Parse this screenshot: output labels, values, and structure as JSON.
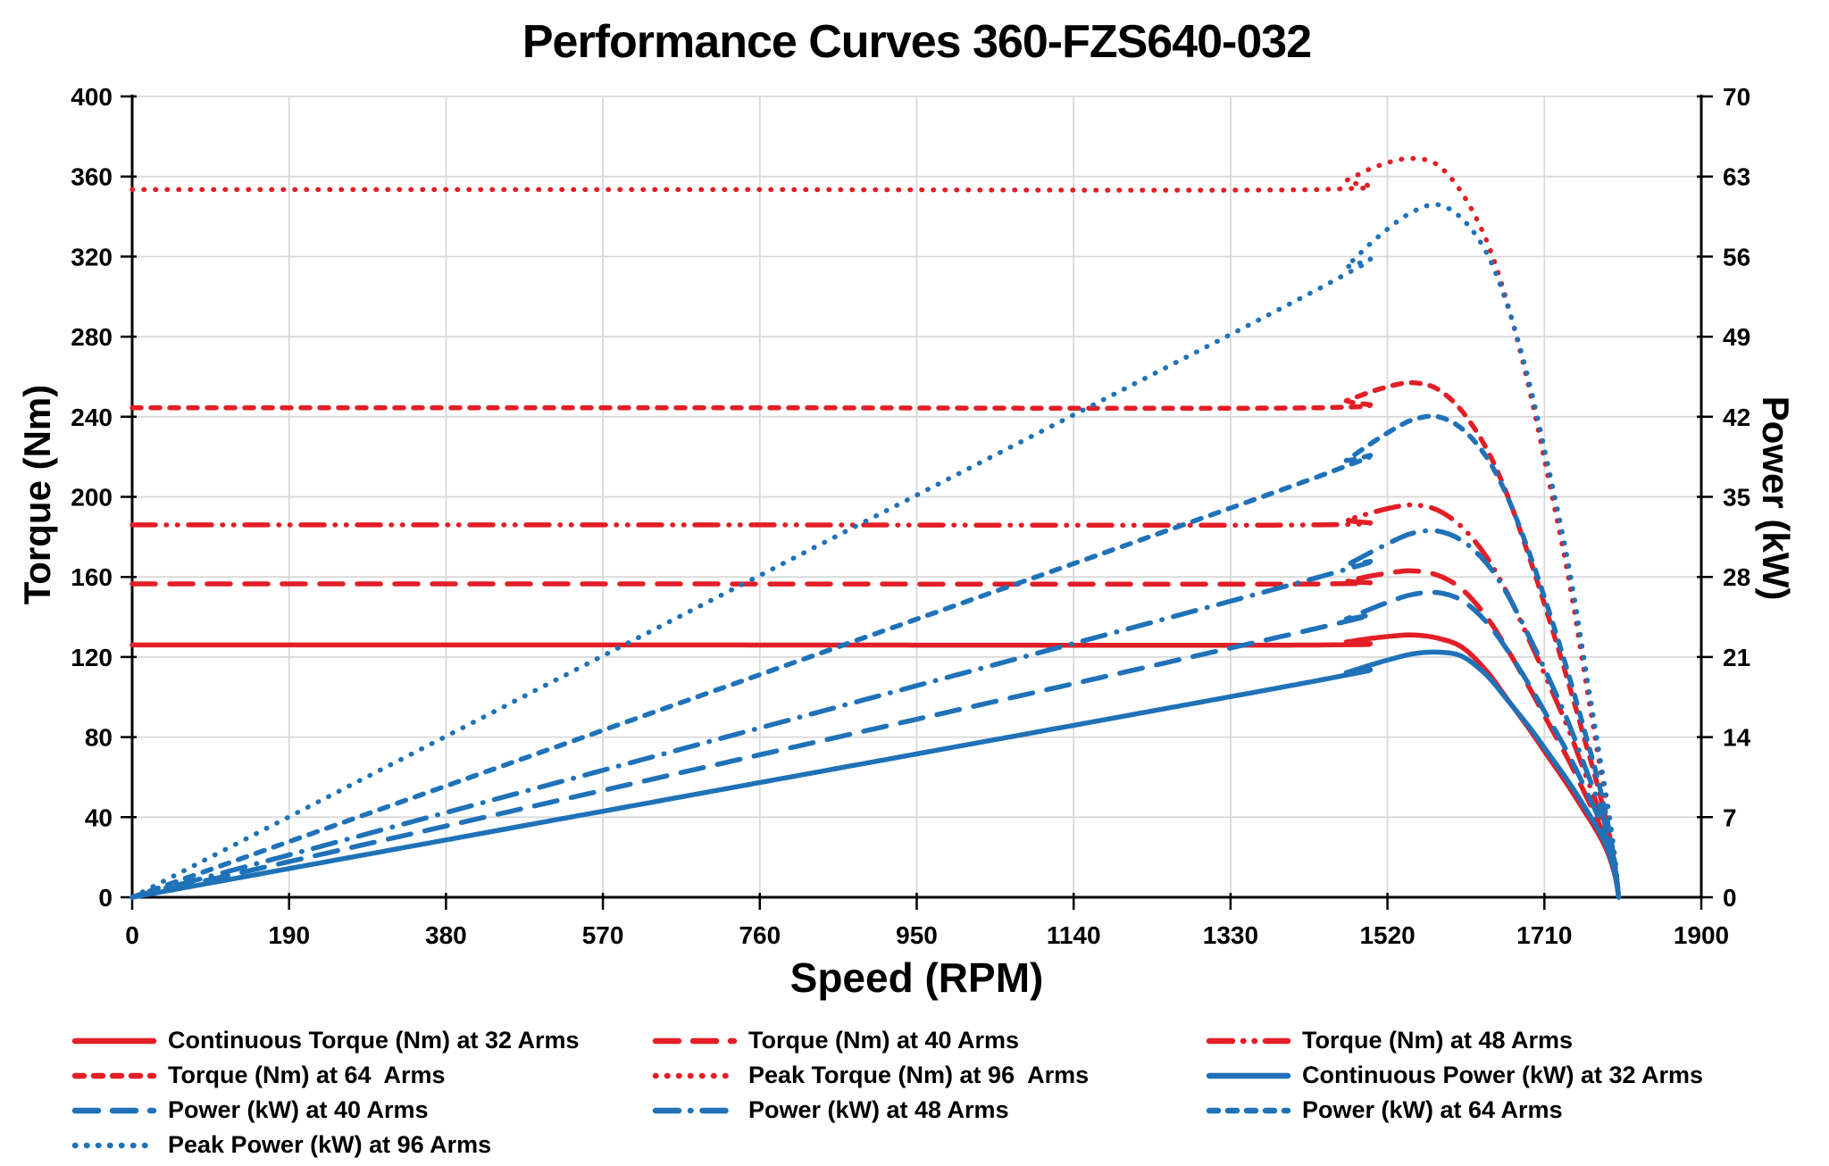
{
  "chart_data": {
    "type": "line",
    "title": "Performance Curves 360-FZS640-032",
    "x_axis": {
      "label": "Speed (RPM)",
      "min": 0,
      "max": 1900,
      "tick_step": 190,
      "ticks": [
        0,
        190,
        380,
        570,
        760,
        950,
        1140,
        1330,
        1520,
        1710,
        1900
      ]
    },
    "y_axis_left": {
      "label": "Torque (Nm)",
      "min": 0,
      "max": 400,
      "tick_step": 40,
      "ticks": [
        0,
        40,
        80,
        120,
        160,
        200,
        240,
        280,
        320,
        360,
        400
      ]
    },
    "y_axis_right": {
      "label": "Power (kW)",
      "min": 0,
      "max": 70,
      "tick_step": 7,
      "ticks": [
        0,
        7,
        14,
        21,
        28,
        35,
        42,
        49,
        56,
        63,
        70
      ]
    },
    "grid": true,
    "legend_position": "bottom",
    "colors": {
      "torque": "#e21e26",
      "power": "#1f72b8",
      "grid": "#d9d9d9",
      "axis": "#000000"
    },
    "power_from_torque_formula": "P_kW = T_Nm * RPM * PI / 30000",
    "series": [
      {
        "id": "torque-32",
        "label": "Continuous Torque (Nm) at 32 Arms",
        "axis": "left",
        "color_role": "torque",
        "dash": "solid",
        "flat_value_nm": 126,
        "peak_value_nm": 131,
        "points_rpm_nm": [
          [
            0,
            126
          ],
          [
            700,
            126
          ],
          [
            1440,
            126
          ],
          [
            1470,
            127.5
          ],
          [
            1500,
            129.3
          ],
          [
            1530,
            130.6
          ],
          [
            1552,
            131
          ],
          [
            1580,
            129.5
          ],
          [
            1610,
            125
          ],
          [
            1640,
            113
          ],
          [
            1665,
            99
          ],
          [
            1690,
            85
          ],
          [
            1715,
            70
          ],
          [
            1740,
            55
          ],
          [
            1760,
            42
          ],
          [
            1775,
            32
          ],
          [
            1785,
            24
          ],
          [
            1792,
            16
          ],
          [
            1797,
            8
          ],
          [
            1800,
            0
          ]
        ]
      },
      {
        "id": "torque-40",
        "label": "Torque (Nm) at 40 Arms",
        "axis": "left",
        "color_role": "torque",
        "dash": "longdash",
        "flat_value_nm": 156.5,
        "peak_value_nm": 163,
        "points_rpm_nm": [
          [
            0,
            156.5
          ],
          [
            700,
            156.5
          ],
          [
            1440,
            156.5
          ],
          [
            1470,
            158
          ],
          [
            1500,
            160.5
          ],
          [
            1530,
            162.5
          ],
          [
            1552,
            163
          ],
          [
            1580,
            161
          ],
          [
            1610,
            154
          ],
          [
            1640,
            140
          ],
          [
            1665,
            124
          ],
          [
            1690,
            106
          ],
          [
            1715,
            87
          ],
          [
            1740,
            68
          ],
          [
            1760,
            51
          ],
          [
            1775,
            38
          ],
          [
            1785,
            28
          ],
          [
            1792,
            18
          ],
          [
            1797,
            9
          ],
          [
            1800,
            0
          ]
        ]
      },
      {
        "id": "torque-48",
        "label": "Torque (Nm) at 48 Arms",
        "axis": "left",
        "color_role": "torque",
        "dash": "dashdotdot",
        "flat_value_nm": 186,
        "peak_value_nm": 196,
        "points_rpm_nm": [
          [
            0,
            186
          ],
          [
            700,
            186
          ],
          [
            1440,
            186
          ],
          [
            1470,
            188.5
          ],
          [
            1500,
            192
          ],
          [
            1530,
            195
          ],
          [
            1552,
            196
          ],
          [
            1580,
            193.5
          ],
          [
            1610,
            185
          ],
          [
            1640,
            170
          ],
          [
            1665,
            152
          ],
          [
            1690,
            130
          ],
          [
            1715,
            107
          ],
          [
            1740,
            83
          ],
          [
            1760,
            61
          ],
          [
            1775,
            45
          ],
          [
            1785,
            32
          ],
          [
            1792,
            20
          ],
          [
            1797,
            10
          ],
          [
            1800,
            0
          ]
        ]
      },
      {
        "id": "torque-64",
        "label": "Torque (Nm) at 64  Arms",
        "axis": "left",
        "color_role": "torque",
        "dash": "shortdash",
        "flat_value_nm": 244.5,
        "peak_value_nm": 257,
        "points_rpm_nm": [
          [
            0,
            244.5
          ],
          [
            700,
            244.5
          ],
          [
            1440,
            244.5
          ],
          [
            1470,
            248
          ],
          [
            1500,
            252.5
          ],
          [
            1530,
            256
          ],
          [
            1552,
            257
          ],
          [
            1580,
            254
          ],
          [
            1610,
            243
          ],
          [
            1640,
            224
          ],
          [
            1665,
            201
          ],
          [
            1690,
            172
          ],
          [
            1715,
            140
          ],
          [
            1740,
            106
          ],
          [
            1760,
            77
          ],
          [
            1775,
            55
          ],
          [
            1785,
            38
          ],
          [
            1792,
            24
          ],
          [
            1797,
            11
          ],
          [
            1800,
            0
          ]
        ]
      },
      {
        "id": "torque-96",
        "label": "Peak Torque (Nm) at 96  Arms",
        "axis": "left",
        "color_role": "torque",
        "dash": "dot",
        "flat_value_nm": 353.5,
        "peak_value_nm": 369,
        "points_rpm_nm": [
          [
            0,
            353.5
          ],
          [
            700,
            353.5
          ],
          [
            1440,
            353.5
          ],
          [
            1470,
            358
          ],
          [
            1500,
            364
          ],
          [
            1530,
            368
          ],
          [
            1552,
            369
          ],
          [
            1580,
            366
          ],
          [
            1610,
            352
          ],
          [
            1640,
            328
          ],
          [
            1665,
            297
          ],
          [
            1690,
            257
          ],
          [
            1715,
            209
          ],
          [
            1740,
            158
          ],
          [
            1760,
            108
          ],
          [
            1775,
            71
          ],
          [
            1785,
            47
          ],
          [
            1792,
            29
          ],
          [
            1797,
            13
          ],
          [
            1800,
            0
          ]
        ]
      },
      {
        "id": "power-32",
        "label": "Continuous Power (kW) at 32 Arms",
        "axis": "right",
        "color_role": "power",
        "dash": "solid",
        "torque_source": "torque-32"
      },
      {
        "id": "power-40",
        "label": "Power (kW) at 40 Arms",
        "axis": "right",
        "color_role": "power",
        "dash": "longdash",
        "torque_source": "torque-40"
      },
      {
        "id": "power-48",
        "label": "Power (kW) at 48 Arms",
        "axis": "right",
        "color_role": "power",
        "dash": "dashdot",
        "torque_source": "torque-48"
      },
      {
        "id": "power-64",
        "label": "Power (kW) at 64 Arms",
        "axis": "right",
        "color_role": "power",
        "dash": "shortdash",
        "torque_source": "torque-64"
      },
      {
        "id": "power-96",
        "label": "Peak Power (kW) at 96 Arms",
        "axis": "right",
        "color_role": "power",
        "dash": "dot",
        "torque_source": "torque-96"
      }
    ],
    "legend_order": [
      "torque-32",
      "torque-40",
      "torque-48",
      "torque-64",
      "torque-96",
      "power-32",
      "power-40",
      "power-48",
      "power-64",
      "power-96"
    ]
  }
}
